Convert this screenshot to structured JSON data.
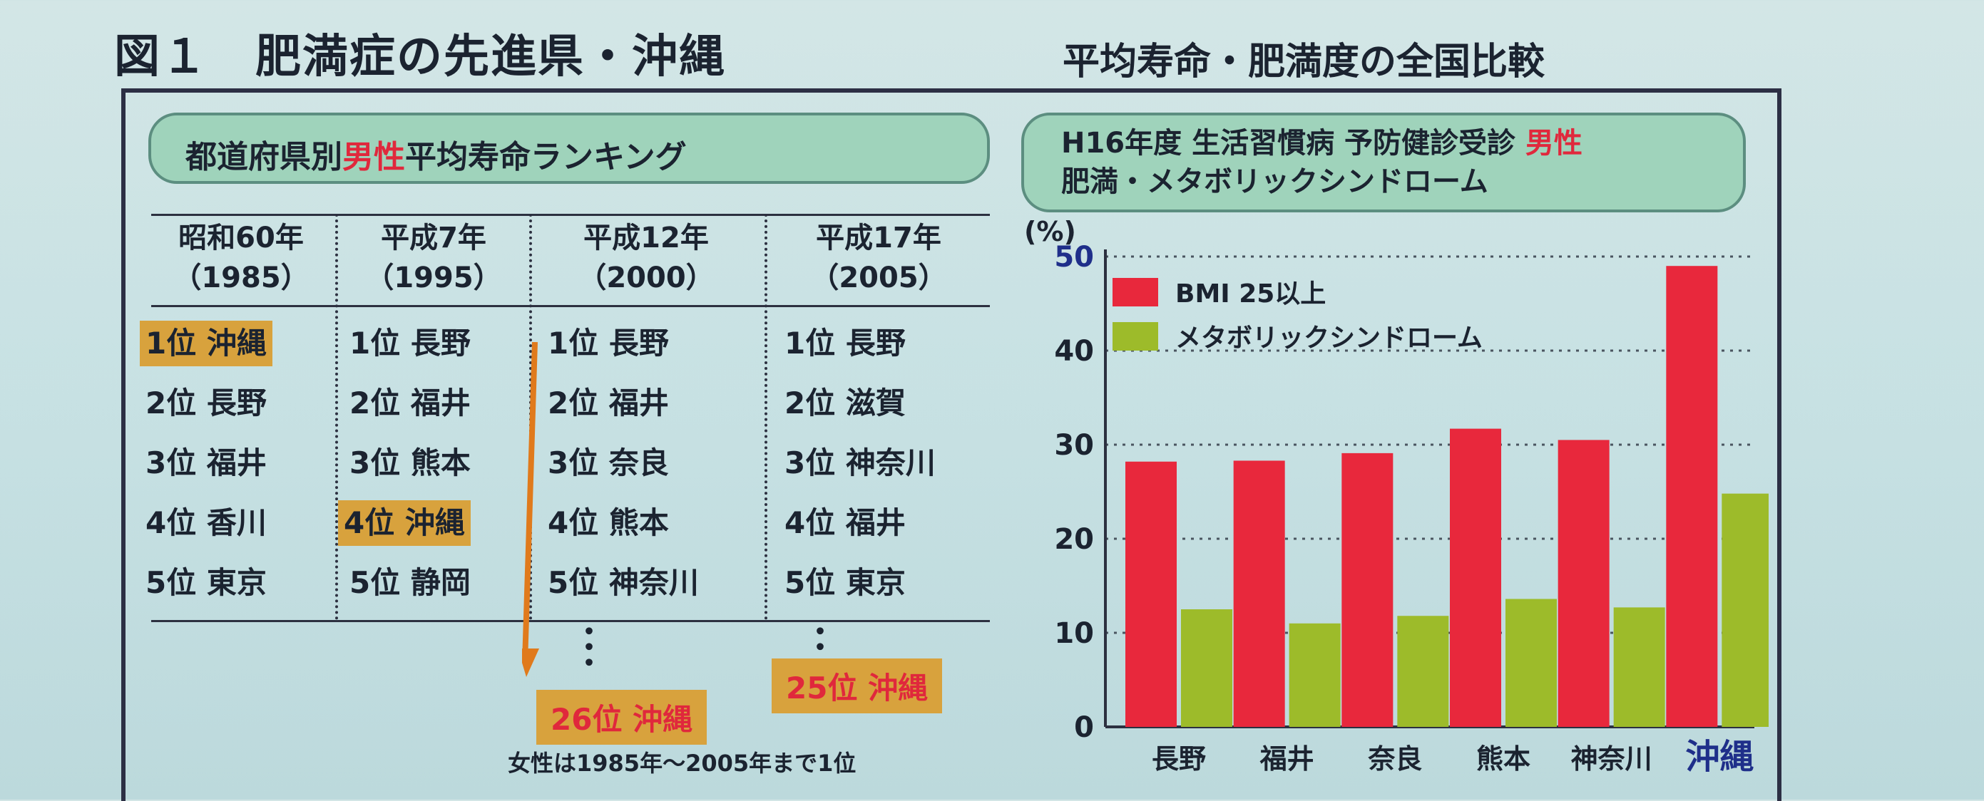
{
  "header": {
    "figure_title": "図１　肥満症の先進県・沖縄",
    "subtitle": "平均寿命・肥満度の全国比較"
  },
  "ranking": {
    "title_pre": "都道府県別",
    "title_em": "男性",
    "title_post": "平均寿命ランキング",
    "columns": [
      {
        "era": "昭和60年",
        "year": "（1985）",
        "items": [
          "1位 沖縄",
          "2位 長野",
          "3位 福井",
          "4位 香川",
          "5位 東京"
        ]
      },
      {
        "era": "平成7年",
        "year": "（1995）",
        "items": [
          "1位 長野",
          "2位 福井",
          "3位 熊本",
          "4位 沖縄",
          "5位 静岡"
        ]
      },
      {
        "era": "平成12年",
        "year": "（2000）",
        "items": [
          "1位 長野",
          "2位 福井",
          "3位 奈良",
          "4位 熊本",
          "5位 神奈川"
        ]
      },
      {
        "era": "平成17年",
        "year": "（2005）",
        "items": [
          "1位 長野",
          "2位 滋賀",
          "3位 神奈川",
          "4位 福井",
          "5位 東京"
        ]
      }
    ],
    "callout_2000": "26位 沖縄",
    "callout_2005": "25位 沖縄",
    "note": "女性は1985年〜2005年まで1位"
  },
  "chart_panel": {
    "title_line1_pre": "H16年度 生活習慣病 予防健診受診 ",
    "title_line1_em": "男性",
    "title_line2": "肥満・メタボリックシンドローム"
  },
  "chart_data": {
    "type": "bar",
    "categories": [
      "長野",
      "福井",
      "奈良",
      "熊本",
      "神奈川",
      "沖縄"
    ],
    "series": [
      {
        "name": "BMI 25以上",
        "values": [
          28.2,
          28.3,
          29.1,
          31.7,
          30.5,
          49.0
        ],
        "color": "#e8283c"
      },
      {
        "name": "メタボリックシンドローム",
        "values": [
          12.5,
          11.0,
          11.8,
          13.6,
          12.7,
          24.8
        ],
        "color": "#9dbb2a"
      }
    ],
    "yunit": "(%)",
    "ylim": [
      0,
      50
    ],
    "yticks": [
      0,
      10,
      20,
      30,
      40,
      50
    ],
    "grid": true,
    "legend": "top-left",
    "highlight_category": "沖縄",
    "highlight_color": "#1f2f8a"
  }
}
